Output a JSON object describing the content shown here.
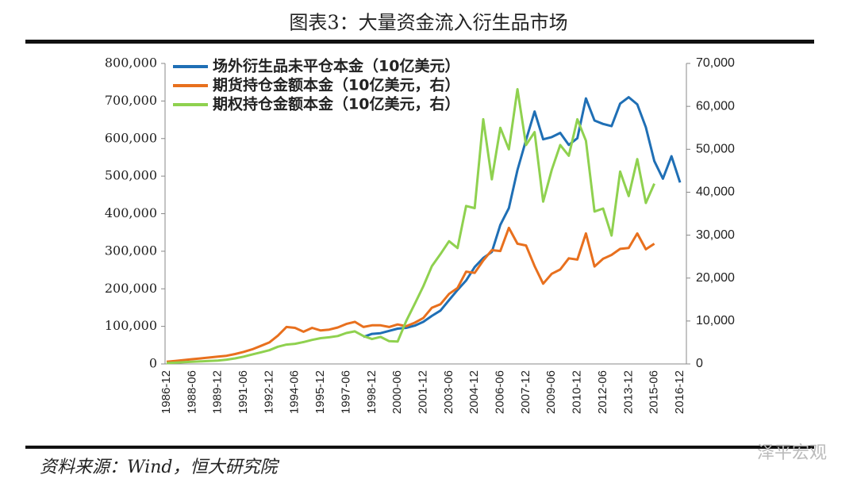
{
  "chart_data": {
    "type": "line",
    "title": "图表3：大量资金流入衍生品市场",
    "source": "资料来源：Wind，恒大研究院",
    "watermark": "泽平宏观",
    "categories": [
      "1986-12",
      null,
      null,
      "1988-06",
      null,
      null,
      "1989-12",
      null,
      null,
      "1991-06",
      null,
      null,
      "1992-12",
      null,
      null,
      "1994-06",
      null,
      null,
      "1995-12",
      null,
      null,
      "1997-06",
      null,
      null,
      "1998-12",
      null,
      null,
      "2000-06",
      null,
      null,
      "2001-12",
      null,
      null,
      "2003-06",
      null,
      null,
      "2004-12",
      null,
      null,
      "2006-06",
      null,
      null,
      "2007-12",
      null,
      null,
      "2009-06",
      null,
      null,
      "2010-12",
      null,
      null,
      "2012-06",
      null,
      null,
      "2013-12",
      null,
      null,
      "2015-06",
      null,
      null,
      "2016-12"
    ],
    "series": [
      {
        "name": "场外衍生品未平仓本金（10亿美元）",
        "color": "#1f6fb5",
        "axis": "y",
        "values": [
          null,
          null,
          null,
          null,
          null,
          null,
          null,
          null,
          null,
          null,
          null,
          null,
          null,
          null,
          null,
          null,
          null,
          null,
          null,
          null,
          null,
          null,
          null,
          72000,
          80000,
          82000,
          88000,
          94000,
          96000,
          102000,
          112000,
          128000,
          142000,
          170000,
          197000,
          222000,
          258000,
          282000,
          298000,
          370000,
          415000,
          516000,
          596000,
          672000,
          598000,
          604000,
          615000,
          583000,
          601000,
          707000,
          648000,
          639000,
          633000,
          693000,
          710000,
          691000,
          630000,
          540000,
          493000,
          553000,
          483000
        ]
      },
      {
        "name": "期货持仓金额本金（10亿美元，右）",
        "color": "#e8701e",
        "axis": "y2",
        "values": [
          500,
          700,
          900,
          1100,
          1300,
          1500,
          1700,
          1900,
          2300,
          2800,
          3400,
          4200,
          5000,
          6600,
          8600,
          8400,
          7500,
          8400,
          7800,
          8000,
          8500,
          9300,
          9800,
          8600,
          9000,
          9000,
          8600,
          9200,
          8800,
          9600,
          10700,
          13100,
          13900,
          16300,
          17700,
          21500,
          21200,
          24100,
          26500,
          26300,
          31700,
          28000,
          27600,
          22800,
          18700,
          21000,
          22000,
          24600,
          24300,
          30400,
          22700,
          24500,
          25400,
          26800,
          27000,
          30400,
          26700,
          28000,
          null,
          null,
          null
        ]
      },
      {
        "name": "期权持仓金额本金（10亿美元，右）",
        "color": "#8fd14f",
        "axis": "y2",
        "values": [
          200,
          300,
          400,
          500,
          600,
          700,
          800,
          1000,
          1300,
          1700,
          2200,
          2700,
          3200,
          4000,
          4500,
          4700,
          5100,
          5600,
          6000,
          6200,
          6500,
          7200,
          7600,
          6500,
          5800,
          6300,
          5300,
          5200,
          10000,
          14000,
          18100,
          22800,
          25600,
          28600,
          27000,
          36800,
          36300,
          57000,
          43000,
          55000,
          50000,
          64000,
          51000,
          54000,
          37800,
          45200,
          51000,
          48500,
          57000,
          52000,
          35500,
          36200,
          29900,
          44800,
          39100,
          47700,
          37500,
          42000,
          null,
          null,
          null
        ]
      }
    ],
    "ylim": [
      0,
      800000
    ],
    "yticks": [
      0,
      {
        "value": 100000,
        "label": "100,000"
      },
      {
        "value": 200000,
        "label": "200,000"
      },
      {
        "value": 300000,
        "label": "300,000"
      },
      {
        "value": 400000,
        "label": "400,000"
      },
      {
        "value": 500000,
        "label": "500,000"
      },
      {
        "value": 600000,
        "label": "600,000"
      },
      {
        "value": 700000,
        "label": "700,000"
      },
      {
        "value": 800000,
        "label": "800,000"
      }
    ],
    "y2lim": [
      0,
      70000
    ],
    "y2ticks": [
      0,
      {
        "value": 10000,
        "label": "10,000"
      },
      {
        "value": 20000,
        "label": "20,000"
      },
      {
        "value": 30000,
        "label": "30,000"
      },
      {
        "value": 40000,
        "label": "40,000"
      },
      {
        "value": 50000,
        "label": "50,000"
      },
      {
        "value": 60000,
        "label": "60,000"
      },
      {
        "value": 70000,
        "label": "70,000"
      }
    ],
    "legend": "upper left"
  }
}
